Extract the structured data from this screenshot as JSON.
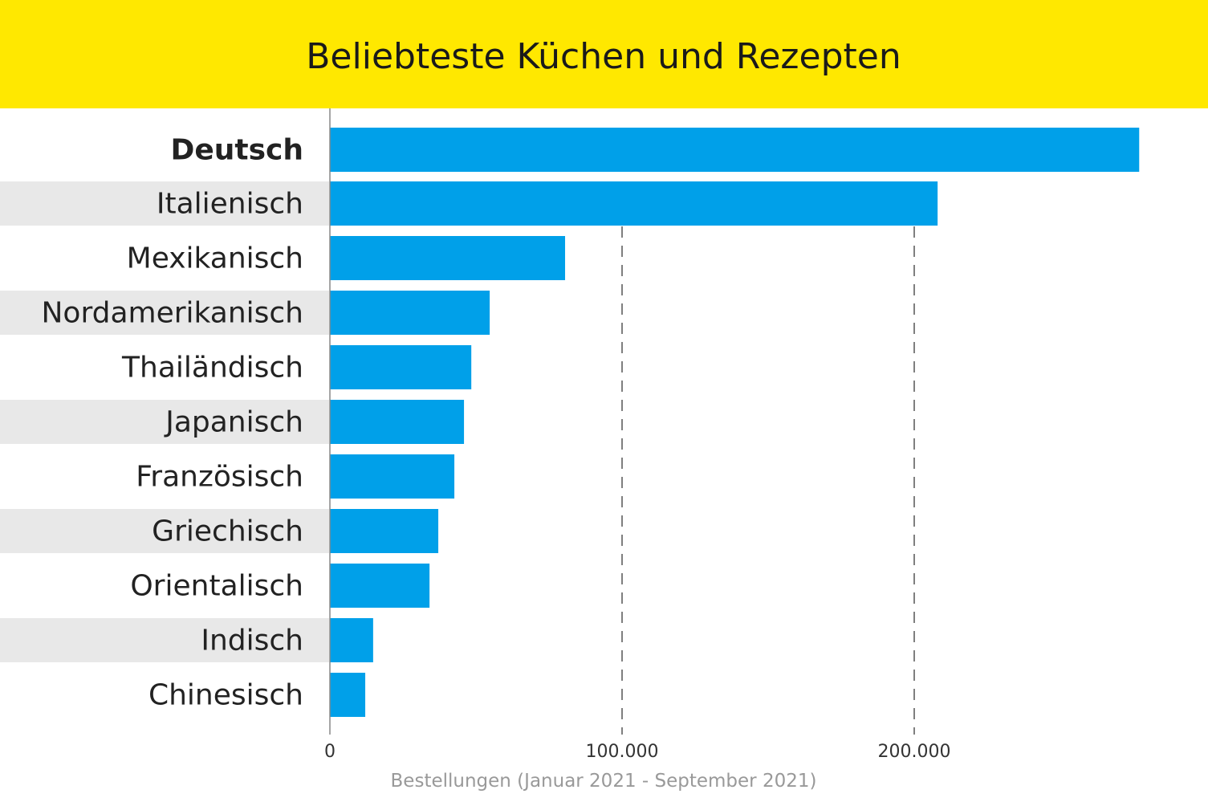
{
  "colors": {
    "header": "#FFE800",
    "bar": "#00A0E9",
    "band": "#E8E8E8",
    "grid": "#555555"
  },
  "chart_data": {
    "type": "bar",
    "orientation": "horizontal",
    "title": "Beliebteste Küchen und Rezepten",
    "xlabel": "Bestellungen (Januar 2021 - September 2021)",
    "ylabel": "",
    "categories": [
      "Deutsch",
      "Italienisch",
      "Mexikanisch",
      "Nordamerikanisch",
      "Thailändisch",
      "Japanisch",
      "Französisch",
      "Griechisch",
      "Orientalisch",
      "Indisch",
      "Chinesisch"
    ],
    "highlighted_category": "Deutsch",
    "values": [
      277000,
      208000,
      80500,
      54700,
      48400,
      45900,
      42600,
      37100,
      34100,
      14800,
      12100
    ],
    "xlim": [
      0,
      300000
    ],
    "xticks": [
      0,
      100000,
      200000
    ],
    "xtick_labels": [
      "0",
      "100.000",
      "200.000"
    ],
    "grid": "vertical dashed"
  }
}
